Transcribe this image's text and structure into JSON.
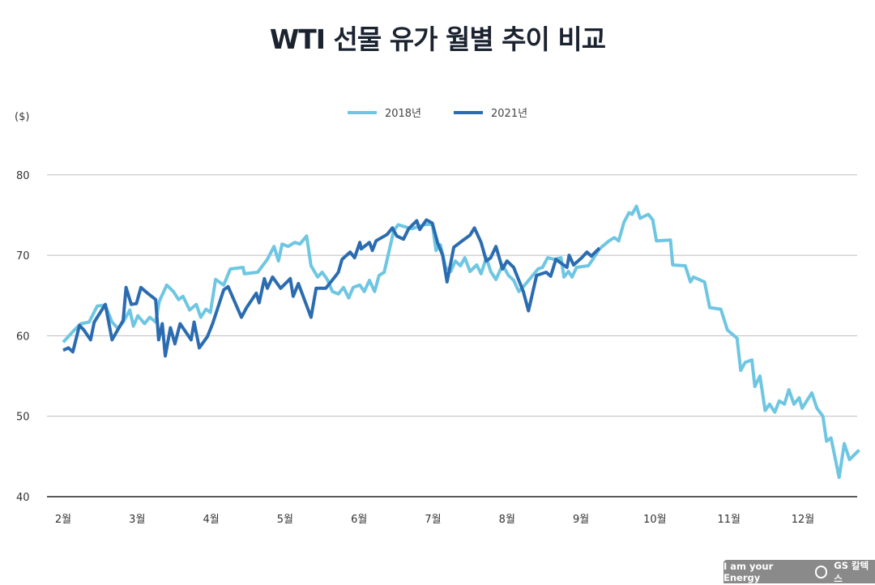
{
  "title": "WTI 선물 유가 월별 추이 비교",
  "unit_label": "($)",
  "branding": {
    "tagline": "I am your Energy",
    "company": "GS 칼텍스"
  },
  "chart_data": {
    "type": "line",
    "title": "WTI 선물 유가 월별 추이 비교",
    "ylabel": "($)",
    "xlabel": "",
    "ylim": [
      40,
      80
    ],
    "yticks": [
      40,
      50,
      60,
      70,
      80
    ],
    "xticks": [
      2,
      3,
      4,
      5,
      6,
      7,
      8,
      9,
      10,
      11,
      12
    ],
    "xtick_labels": [
      "2월",
      "3월",
      "4월",
      "5월",
      "6월",
      "7월",
      "8월",
      "9월",
      "10월",
      "11월",
      "12월"
    ],
    "grid": "horizontal",
    "legend_position": "top-center",
    "series": [
      {
        "name": "2018년",
        "color": "#6ec6e2",
        "points": [
          [
            2.0,
            59.2
          ],
          [
            2.15,
            60.7
          ],
          [
            2.24,
            61.5
          ],
          [
            2.35,
            61.7
          ],
          [
            2.46,
            63.7
          ],
          [
            2.57,
            63.8
          ],
          [
            2.66,
            61.7
          ],
          [
            2.74,
            60.9
          ],
          [
            2.81,
            61.7
          ],
          [
            2.9,
            63.2
          ],
          [
            2.95,
            61.2
          ],
          [
            3.01,
            62.5
          ],
          [
            3.1,
            61.5
          ],
          [
            3.17,
            62.3
          ],
          [
            3.25,
            61.7
          ],
          [
            3.3,
            64.3
          ],
          [
            3.4,
            66.3
          ],
          [
            3.49,
            65.5
          ],
          [
            3.56,
            64.5
          ],
          [
            3.62,
            64.9
          ],
          [
            3.71,
            63.2
          ],
          [
            3.8,
            63.9
          ],
          [
            3.86,
            62.3
          ],
          [
            3.93,
            63.3
          ],
          [
            3.99,
            62.9
          ],
          [
            4.06,
            67.0
          ],
          [
            4.17,
            66.3
          ],
          [
            4.26,
            68.3
          ],
          [
            4.43,
            68.5
          ],
          [
            4.45,
            67.7
          ],
          [
            4.63,
            67.9
          ],
          [
            4.76,
            69.5
          ],
          [
            4.85,
            71.1
          ],
          [
            4.91,
            69.3
          ],
          [
            4.96,
            71.4
          ],
          [
            5.04,
            71.1
          ],
          [
            5.13,
            71.6
          ],
          [
            5.2,
            71.4
          ],
          [
            5.29,
            72.4
          ],
          [
            5.35,
            68.7
          ],
          [
            5.44,
            67.3
          ],
          [
            5.5,
            67.9
          ],
          [
            5.57,
            67.0
          ],
          [
            5.64,
            65.5
          ],
          [
            5.72,
            65.2
          ],
          [
            5.79,
            66.0
          ],
          [
            5.86,
            64.7
          ],
          [
            5.92,
            66.0
          ],
          [
            6.01,
            66.3
          ],
          [
            6.07,
            65.5
          ],
          [
            6.14,
            66.9
          ],
          [
            6.21,
            65.5
          ],
          [
            6.27,
            67.5
          ],
          [
            6.34,
            67.9
          ],
          [
            6.47,
            73.1
          ],
          [
            6.53,
            73.8
          ],
          [
            6.71,
            73.3
          ],
          [
            6.88,
            73.8
          ],
          [
            6.99,
            73.9
          ],
          [
            7.04,
            70.6
          ],
          [
            7.1,
            71.3
          ],
          [
            7.17,
            68.5
          ],
          [
            7.24,
            68.0
          ],
          [
            7.3,
            69.3
          ],
          [
            7.37,
            68.7
          ],
          [
            7.43,
            69.7
          ],
          [
            7.5,
            68.0
          ],
          [
            7.59,
            68.8
          ],
          [
            7.65,
            67.7
          ],
          [
            7.72,
            69.7
          ],
          [
            7.78,
            68.0
          ],
          [
            7.85,
            67.0
          ],
          [
            7.94,
            68.8
          ],
          [
            8.02,
            67.5
          ],
          [
            8.09,
            66.9
          ],
          [
            8.16,
            65.5
          ],
          [
            8.24,
            66.3
          ],
          [
            8.33,
            67.3
          ],
          [
            8.42,
            68.3
          ],
          [
            8.48,
            68.5
          ],
          [
            8.55,
            69.7
          ],
          [
            8.64,
            69.5
          ],
          [
            8.73,
            69.7
          ],
          [
            8.77,
            67.3
          ],
          [
            8.83,
            68.0
          ],
          [
            8.88,
            67.3
          ],
          [
            8.94,
            68.5
          ],
          [
            9.1,
            68.7
          ],
          [
            9.16,
            69.5
          ],
          [
            9.25,
            70.8
          ],
          [
            9.38,
            71.8
          ],
          [
            9.45,
            72.2
          ],
          [
            9.51,
            71.8
          ],
          [
            9.58,
            74.1
          ],
          [
            9.65,
            75.3
          ],
          [
            9.69,
            75.1
          ],
          [
            9.75,
            76.1
          ],
          [
            9.8,
            74.6
          ],
          [
            9.91,
            75.1
          ],
          [
            9.97,
            74.4
          ],
          [
            10.02,
            71.8
          ],
          [
            10.21,
            71.9
          ],
          [
            10.24,
            68.8
          ],
          [
            10.41,
            68.7
          ],
          [
            10.48,
            66.7
          ],
          [
            10.52,
            67.3
          ],
          [
            10.67,
            66.7
          ],
          [
            10.74,
            63.5
          ],
          [
            10.89,
            63.3
          ],
          [
            10.98,
            60.7
          ],
          [
            11.11,
            59.7
          ],
          [
            11.16,
            55.7
          ],
          [
            11.22,
            56.7
          ],
          [
            11.31,
            57.0
          ],
          [
            11.35,
            53.7
          ],
          [
            11.42,
            55.0
          ],
          [
            11.49,
            50.7
          ],
          [
            11.55,
            51.5
          ],
          [
            11.62,
            50.5
          ],
          [
            11.68,
            51.9
          ],
          [
            11.75,
            51.5
          ],
          [
            11.81,
            53.3
          ],
          [
            11.88,
            51.5
          ],
          [
            11.95,
            52.3
          ],
          [
            11.99,
            51.0
          ],
          [
            12.12,
            52.9
          ],
          [
            12.19,
            51.0
          ],
          [
            12.27,
            50.0
          ],
          [
            12.32,
            46.9
          ],
          [
            12.38,
            47.3
          ],
          [
            12.49,
            42.4
          ],
          [
            12.56,
            46.6
          ],
          [
            12.63,
            44.6
          ],
          [
            12.76,
            45.8
          ]
        ]
      },
      {
        "name": "2021년",
        "color": "#2b6cb0",
        "points": [
          [
            2.0,
            58.2
          ],
          [
            2.07,
            58.5
          ],
          [
            2.13,
            58.0
          ],
          [
            2.22,
            61.3
          ],
          [
            2.28,
            60.7
          ],
          [
            2.37,
            59.5
          ],
          [
            2.42,
            61.7
          ],
          [
            2.57,
            63.9
          ],
          [
            2.66,
            59.5
          ],
          [
            2.81,
            61.9
          ],
          [
            2.85,
            66.0
          ],
          [
            2.92,
            63.9
          ],
          [
            2.99,
            64.0
          ],
          [
            3.05,
            66.0
          ],
          [
            3.14,
            65.3
          ],
          [
            3.25,
            64.5
          ],
          [
            3.29,
            59.5
          ],
          [
            3.34,
            61.5
          ],
          [
            3.38,
            57.5
          ],
          [
            3.45,
            61.0
          ],
          [
            3.51,
            59.0
          ],
          [
            3.58,
            61.5
          ],
          [
            3.73,
            59.5
          ],
          [
            3.77,
            61.7
          ],
          [
            3.84,
            58.5
          ],
          [
            3.95,
            59.9
          ],
          [
            4.02,
            61.5
          ],
          [
            4.17,
            65.7
          ],
          [
            4.23,
            66.1
          ],
          [
            4.41,
            62.3
          ],
          [
            4.48,
            63.5
          ],
          [
            4.61,
            65.3
          ],
          [
            4.65,
            64.1
          ],
          [
            4.72,
            67.1
          ],
          [
            4.76,
            65.9
          ],
          [
            4.83,
            67.3
          ],
          [
            4.94,
            65.9
          ],
          [
            5.07,
            67.1
          ],
          [
            5.11,
            64.9
          ],
          [
            5.18,
            66.5
          ],
          [
            5.35,
            62.3
          ],
          [
            5.42,
            65.9
          ],
          [
            5.55,
            65.9
          ],
          [
            5.68,
            67.4
          ],
          [
            5.72,
            67.9
          ],
          [
            5.77,
            69.5
          ],
          [
            5.88,
            70.4
          ],
          [
            5.94,
            69.7
          ],
          [
            6.01,
            71.6
          ],
          [
            6.03,
            70.8
          ],
          [
            6.14,
            71.6
          ],
          [
            6.18,
            70.6
          ],
          [
            6.23,
            71.8
          ],
          [
            6.38,
            72.6
          ],
          [
            6.45,
            73.4
          ],
          [
            6.51,
            72.4
          ],
          [
            6.6,
            72.0
          ],
          [
            6.67,
            73.3
          ],
          [
            6.78,
            74.3
          ],
          [
            6.82,
            73.2
          ],
          [
            6.91,
            74.4
          ],
          [
            6.99,
            74.0
          ],
          [
            7.06,
            71.6
          ],
          [
            7.13,
            70.0
          ],
          [
            7.19,
            66.7
          ],
          [
            7.28,
            71.0
          ],
          [
            7.41,
            71.9
          ],
          [
            7.5,
            72.5
          ],
          [
            7.56,
            73.4
          ],
          [
            7.65,
            71.6
          ],
          [
            7.72,
            69.3
          ],
          [
            7.78,
            69.7
          ],
          [
            7.85,
            71.1
          ],
          [
            7.94,
            68.3
          ],
          [
            8.0,
            69.3
          ],
          [
            8.09,
            68.5
          ],
          [
            8.22,
            65.5
          ],
          [
            8.29,
            63.1
          ],
          [
            8.4,
            67.5
          ],
          [
            8.53,
            67.9
          ],
          [
            8.59,
            67.4
          ],
          [
            8.66,
            69.5
          ],
          [
            8.81,
            68.5
          ],
          [
            8.84,
            70.0
          ],
          [
            8.9,
            68.8
          ],
          [
            9.01,
            69.7
          ],
          [
            9.08,
            70.4
          ],
          [
            9.14,
            69.9
          ],
          [
            9.25,
            70.9
          ]
        ]
      }
    ]
  }
}
